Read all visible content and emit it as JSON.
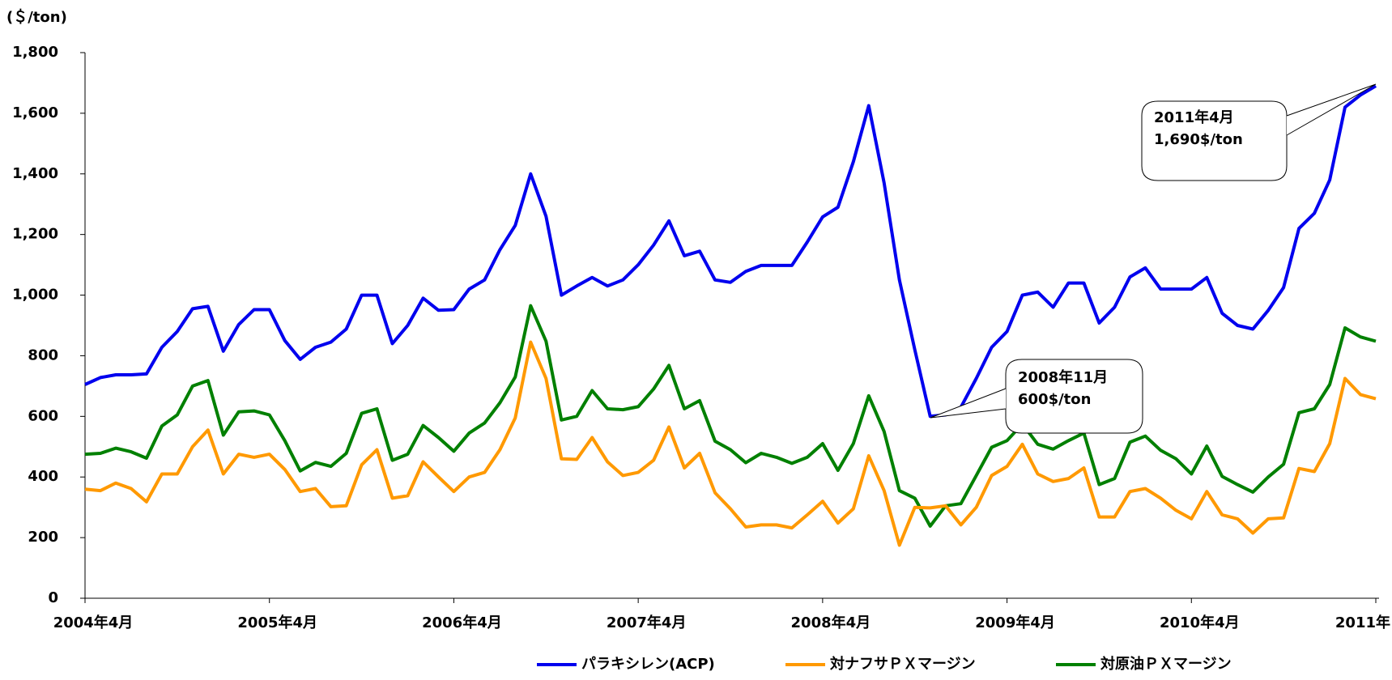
{
  "chart_data": {
    "type": "line",
    "y_unit_label": "(＄/ton)",
    "categories": [
      "2004年4月",
      null,
      null,
      null,
      null,
      null,
      null,
      null,
      null,
      null,
      null,
      null,
      "2005年4月",
      null,
      null,
      null,
      null,
      null,
      null,
      null,
      null,
      null,
      null,
      null,
      "2006年4月",
      null,
      null,
      null,
      null,
      null,
      null,
      null,
      null,
      null,
      null,
      null,
      "2007年4月",
      null,
      null,
      null,
      null,
      null,
      null,
      null,
      null,
      null,
      null,
      null,
      "2008年4月",
      null,
      null,
      null,
      null,
      null,
      null,
      null,
      null,
      null,
      null,
      null,
      "2009年4月",
      null,
      null,
      null,
      null,
      null,
      null,
      null,
      null,
      null,
      null,
      null,
      "2010年4月",
      null,
      null,
      null,
      null,
      null,
      null,
      null,
      null,
      null,
      null,
      null,
      "2011年"
    ],
    "series": [
      {
        "name": "パラキシレン(ACP)",
        "color": "#0000ee",
        "values": [
          705,
          728,
          737,
          737,
          740,
          828,
          880,
          955,
          963,
          815,
          903,
          952,
          952,
          850,
          788,
          828,
          845,
          888,
          1000,
          1000,
          840,
          900,
          990,
          950,
          952,
          1020,
          1050,
          1150,
          1230,
          1400,
          1260,
          1000,
          1030,
          1058,
          1030,
          1050,
          1100,
          1165,
          1245,
          1130,
          1145,
          1050,
          1042,
          1078,
          1098,
          1098,
          1098,
          1175,
          1258,
          1290,
          1440,
          1625,
          1370,
          1050,
          820,
          600,
          605,
          630,
          725,
          828,
          880,
          1000,
          1010,
          960,
          1040,
          1040,
          908,
          960,
          1060,
          1090,
          1020,
          1020,
          1020,
          1058,
          940,
          900,
          888,
          950,
          1025,
          1220,
          1270,
          1380,
          1620,
          1660,
          1690
        ]
      },
      {
        "name": "対ナフサＰＸマージン",
        "color": "#ff9900",
        "values": [
          360,
          355,
          380,
          362,
          318,
          410,
          410,
          500,
          555,
          410,
          475,
          465,
          475,
          425,
          352,
          362,
          302,
          305,
          440,
          490,
          330,
          338,
          450,
          400,
          352,
          400,
          415,
          490,
          595,
          845,
          725,
          460,
          458,
          530,
          450,
          405,
          415,
          455,
          565,
          430,
          478,
          348,
          295,
          235,
          242,
          242,
          232,
          275,
          320,
          248,
          295,
          470,
          355,
          175,
          300,
          298,
          305,
          242,
          300,
          405,
          435,
          508,
          410,
          385,
          395,
          430,
          268,
          268,
          352,
          362,
          330,
          290,
          262,
          352,
          275,
          262,
          215,
          262,
          265,
          428,
          418,
          510,
          725,
          672,
          658
        ]
      },
      {
        "name": "対原油ＰＸマージン",
        "color": "#008000",
        "values": [
          475,
          478,
          495,
          483,
          462,
          568,
          605,
          700,
          718,
          538,
          615,
          618,
          605,
          520,
          420,
          448,
          435,
          478,
          610,
          625,
          455,
          475,
          570,
          530,
          485,
          545,
          578,
          645,
          730,
          965,
          848,
          588,
          600,
          685,
          625,
          622,
          632,
          690,
          768,
          625,
          652,
          518,
          490,
          447,
          478,
          465,
          445,
          465,
          510,
          422,
          510,
          668,
          550,
          355,
          330,
          238,
          305,
          312,
          405,
          498,
          520,
          575,
          508,
          492,
          520,
          545,
          375,
          395,
          515,
          535,
          488,
          460,
          410,
          502,
          402,
          375,
          350,
          400,
          442,
          612,
          625,
          705,
          892,
          862,
          848
        ]
      }
    ],
    "ylim": [
      0,
      1800
    ],
    "yticks": [
      0,
      200,
      400,
      600,
      800,
      {
        "value": 1000,
        "label": "1,000"
      },
      {
        "value": 1200,
        "label": "1,200"
      },
      {
        "value": 1400,
        "label": "1,400"
      },
      {
        "value": 1600,
        "label": "1,600"
      },
      {
        "value": 1800,
        "label": "1,800"
      }
    ],
    "annotations": [
      {
        "lines": [
          "2011年4月",
          "1,690$/ton"
        ]
      },
      {
        "lines": [
          "2008年11月",
          "600$/ton"
        ]
      }
    ]
  }
}
